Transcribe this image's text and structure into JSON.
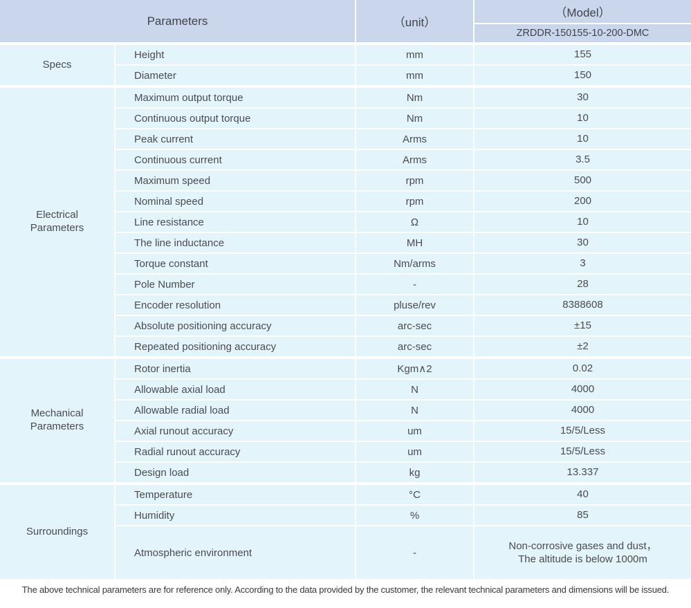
{
  "table": {
    "header": {
      "parameters_label": "Parameters",
      "unit_label": "（unit）",
      "model_label": "（Model）",
      "model_value": "ZRDDR-150155-10-200-DMC"
    },
    "groups": [
      {
        "label": "Specs",
        "rows": [
          {
            "parameter": "Height",
            "unit": "mm",
            "value": "155"
          },
          {
            "parameter": "Diameter",
            "unit": "mm",
            "value": "150"
          }
        ]
      },
      {
        "label": "Electrical\nParameters",
        "rows": [
          {
            "parameter": "Maximum output torque",
            "unit": "Nm",
            "value": "30"
          },
          {
            "parameter": "Continuous output torque",
            "unit": "Nm",
            "value": "10"
          },
          {
            "parameter": "Peak current",
            "unit": "Arms",
            "value": "10"
          },
          {
            "parameter": "Continuous current",
            "unit": "Arms",
            "value": "3.5"
          },
          {
            "parameter": "Maximum speed",
            "unit": "rpm",
            "value": "500"
          },
          {
            "parameter": "Nominal speed",
            "unit": "rpm",
            "value": "200"
          },
          {
            "parameter": "Line resistance",
            "unit": "Ω",
            "value": "10"
          },
          {
            "parameter": "The line inductance",
            "unit": "MH",
            "value": "30"
          },
          {
            "parameter": "Torque constant",
            "unit": "Nm/arms",
            "value": "3"
          },
          {
            "parameter": "Pole Number",
            "unit": "-",
            "value": "28"
          },
          {
            "parameter": "Encoder resolution",
            "unit": "pluse/rev",
            "value": "8388608"
          },
          {
            "parameter": "Absolute positioning accuracy",
            "unit": "arc-sec",
            "value": "±15"
          },
          {
            "parameter": "Repeated positioning accuracy",
            "unit": "arc-sec",
            "value": "±2"
          }
        ]
      },
      {
        "label": "Mechanical\nParameters",
        "rows": [
          {
            "parameter": "Rotor inertia",
            "unit": "Kgm∧2",
            "value": "0.02"
          },
          {
            "parameter": "Allowable axial load",
            "unit": "N",
            "value": "4000"
          },
          {
            "parameter": "Allowable radial load",
            "unit": "N",
            "value": "4000"
          },
          {
            "parameter": "Axial runout accuracy",
            "unit": "um",
            "value": "15/5/Less"
          },
          {
            "parameter": "Radial runout accuracy",
            "unit": "um",
            "value": "15/5/Less"
          },
          {
            "parameter": "Design load",
            "unit": "kg",
            "value": "13.337"
          }
        ]
      },
      {
        "label": "Surroundings",
        "rows": [
          {
            "parameter": "Temperature",
            "unit": "°C",
            "value": "40"
          },
          {
            "parameter": "Humidity",
            "unit": "%",
            "value": "85"
          },
          {
            "parameter": "Atmospheric environment",
            "unit": "-",
            "value": "Non-corrosive gases and dust，\nThe altitude is below 1000m"
          }
        ]
      }
    ]
  },
  "footer": {
    "note": "The above technical parameters are for reference only. According to the data provided by the customer, the relevant technical parameters and dimensions will be issued."
  },
  "colors": {
    "header_bg": "#c9d6ec",
    "body_bg": "#e3f4fb",
    "grid": "#ffffff",
    "text": "#4a4b50",
    "footnote_text": "#39393b"
  }
}
